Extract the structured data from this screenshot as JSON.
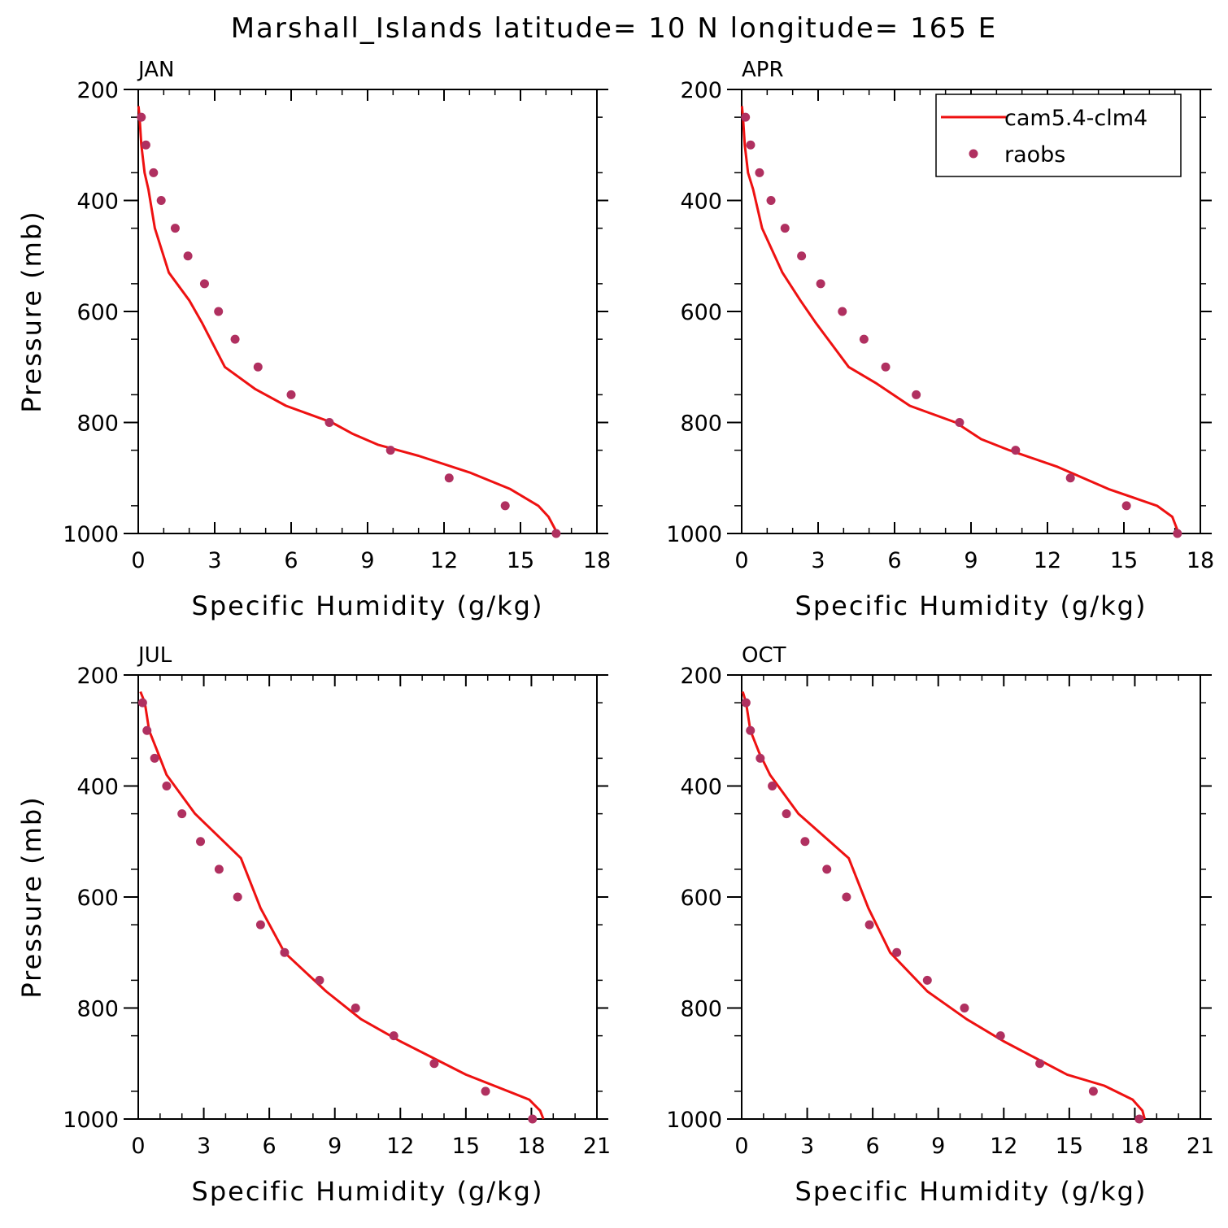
{
  "figure_title": "Marshall_Islands  latitude= 10 N longitude= 165 E",
  "colors": {
    "model": "#ee1111",
    "obs": "#b03060",
    "axes": "#000000",
    "background": "#ffffff"
  },
  "legend": {
    "model_label": "cam5.4-clm4",
    "obs_label": "raobs",
    "placement": "top-right of APR panel"
  },
  "chart_data": [
    {
      "type": "line",
      "title": "JAN",
      "xlabel": "Specific Humidity (g/kg)",
      "ylabel": "Pressure (mb)",
      "xlim": [
        0,
        18
      ],
      "ylim": [
        1000,
        200
      ],
      "xticks": [
        0,
        3,
        6,
        9,
        12,
        15,
        18
      ],
      "yticks": [
        200,
        400,
        600,
        800,
        1000
      ],
      "series": [
        {
          "name": "cam5.4-clm4",
          "kind": "line",
          "x": [
            0.01,
            0.05,
            0.12,
            0.25,
            0.4,
            0.65,
            1.2,
            2.0,
            2.5,
            3.4,
            4.6,
            5.8,
            7.6,
            8.4,
            9.4,
            11.0,
            13.0,
            14.6,
            15.7,
            16.1,
            16.45
          ],
          "y": [
            230,
            250,
            300,
            350,
            380,
            450,
            530,
            580,
            620,
            700,
            740,
            770,
            800,
            820,
            840,
            860,
            890,
            920,
            950,
            970,
            1000
          ]
        },
        {
          "name": "raobs",
          "kind": "scatter",
          "x": [
            0.12,
            0.3,
            0.6,
            0.9,
            1.45,
            1.95,
            2.6,
            3.15,
            3.8,
            4.7,
            6.0,
            7.5,
            9.9,
            12.2,
            14.4,
            16.4
          ],
          "y": [
            250,
            300,
            350,
            400,
            450,
            500,
            550,
            600,
            650,
            700,
            750,
            800,
            850,
            900,
            950,
            1000
          ]
        }
      ]
    },
    {
      "type": "line",
      "title": "APR",
      "xlabel": "Specific Humidity (g/kg)",
      "ylabel": "",
      "xlim": [
        0,
        18
      ],
      "ylim": [
        1000,
        200
      ],
      "xticks": [
        0,
        3,
        6,
        9,
        12,
        15,
        18
      ],
      "yticks": [
        200,
        400,
        600,
        800,
        1000
      ],
      "series": [
        {
          "name": "cam5.4-clm4",
          "kind": "line",
          "x": [
            0.01,
            0.05,
            0.12,
            0.25,
            0.45,
            0.8,
            1.6,
            2.3,
            2.9,
            4.2,
            5.3,
            6.6,
            8.4,
            9.4,
            10.5,
            12.4,
            14.4,
            16.3,
            16.9,
            17.15
          ],
          "y": [
            230,
            250,
            300,
            350,
            380,
            450,
            530,
            580,
            620,
            700,
            730,
            770,
            800,
            830,
            850,
            880,
            920,
            950,
            970,
            1000
          ]
        },
        {
          "name": "raobs",
          "kind": "scatter",
          "x": [
            0.15,
            0.35,
            0.7,
            1.15,
            1.7,
            2.35,
            3.1,
            3.95,
            4.8,
            5.65,
            6.85,
            8.55,
            10.75,
            12.9,
            15.1,
            17.1
          ],
          "y": [
            250,
            300,
            350,
            400,
            450,
            500,
            550,
            600,
            650,
            700,
            750,
            800,
            850,
            900,
            950,
            1000
          ]
        }
      ]
    },
    {
      "type": "line",
      "title": "JUL",
      "xlabel": "Specific Humidity (g/kg)",
      "ylabel": "Pressure (mb)",
      "xlim": [
        0,
        21
      ],
      "ylim": [
        1000,
        200
      ],
      "xticks": [
        0,
        3,
        6,
        9,
        12,
        15,
        18,
        21
      ],
      "yticks": [
        200,
        400,
        600,
        800,
        1000
      ],
      "series": [
        {
          "name": "cam5.4-clm4",
          "kind": "line",
          "x": [
            0.1,
            0.3,
            0.5,
            0.8,
            1.3,
            2.6,
            4.7,
            5.6,
            6.7,
            8.6,
            10.2,
            12.0,
            15.0,
            17.9,
            18.4,
            18.55
          ],
          "y": [
            230,
            250,
            300,
            330,
            380,
            450,
            530,
            620,
            700,
            770,
            820,
            860,
            920,
            965,
            985,
            1000
          ]
        },
        {
          "name": "raobs",
          "kind": "scatter",
          "x": [
            0.2,
            0.4,
            0.75,
            1.3,
            2.0,
            2.85,
            3.7,
            4.55,
            5.6,
            6.7,
            8.3,
            9.95,
            11.7,
            13.55,
            15.9,
            18.05
          ],
          "y": [
            250,
            300,
            350,
            400,
            450,
            500,
            550,
            600,
            650,
            700,
            750,
            800,
            850,
            900,
            950,
            1000
          ]
        }
      ]
    },
    {
      "type": "line",
      "title": "OCT",
      "xlabel": "Specific Humidity (g/kg)",
      "ylabel": "",
      "xlim": [
        0,
        21
      ],
      "ylim": [
        1000,
        200
      ],
      "xticks": [
        0,
        3,
        6,
        9,
        12,
        15,
        18,
        21
      ],
      "yticks": [
        200,
        400,
        600,
        800,
        1000
      ],
      "series": [
        {
          "name": "cam5.4-clm4",
          "kind": "line",
          "x": [
            0.05,
            0.2,
            0.4,
            0.8,
            1.3,
            2.6,
            4.9,
            5.8,
            6.8,
            8.5,
            10.3,
            12.0,
            14.9,
            16.6,
            17.9,
            18.35,
            18.45
          ],
          "y": [
            230,
            250,
            300,
            340,
            380,
            450,
            530,
            620,
            700,
            770,
            820,
            860,
            920,
            940,
            965,
            985,
            1000
          ]
        },
        {
          "name": "raobs",
          "kind": "scatter",
          "x": [
            0.2,
            0.4,
            0.85,
            1.4,
            2.05,
            2.9,
            3.9,
            4.8,
            5.85,
            7.1,
            8.5,
            10.2,
            11.85,
            13.65,
            16.1,
            18.2
          ],
          "y": [
            250,
            300,
            350,
            400,
            450,
            500,
            550,
            600,
            650,
            700,
            750,
            800,
            850,
            900,
            950,
            1000
          ]
        }
      ]
    }
  ]
}
